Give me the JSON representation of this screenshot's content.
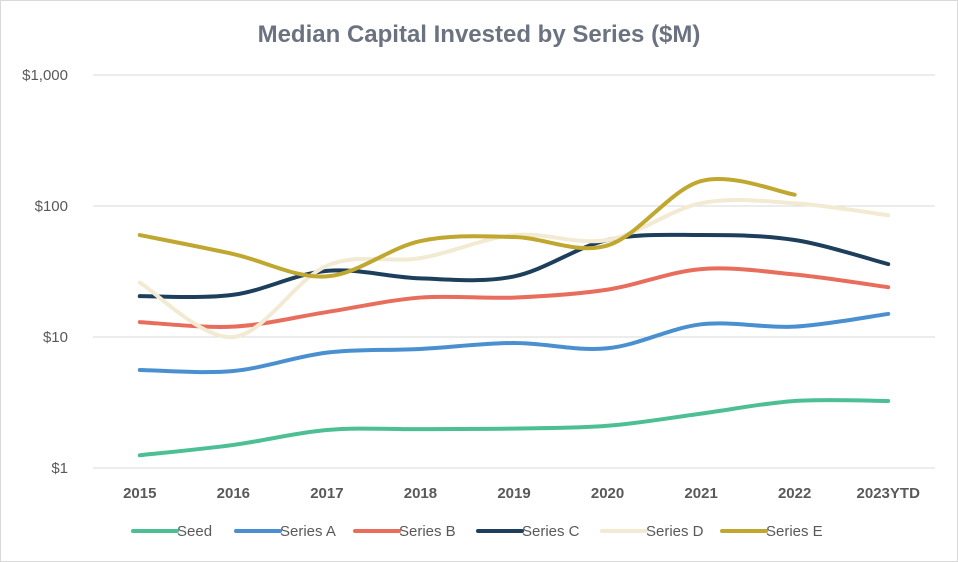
{
  "chart_data": {
    "type": "line",
    "title": "Median Capital Invested by Series ($M)",
    "xlabel": "",
    "ylabel": "",
    "y_scale": "log",
    "ylim": [
      1,
      1000
    ],
    "y_ticks": [
      1,
      10,
      100,
      1000
    ],
    "y_tick_labels": [
      "$1",
      "$10",
      "$100",
      "$1,000"
    ],
    "grid": true,
    "legend_position": "bottom",
    "categories": [
      "2015",
      "2016",
      "2017",
      "2018",
      "2019",
      "2020",
      "2021",
      "2022",
      "2023YTD"
    ],
    "series": [
      {
        "name": "Seed",
        "color": "#4dbf94",
        "values": [
          1.25,
          1.5,
          1.95,
          1.98,
          2.0,
          2.1,
          2.6,
          3.25,
          3.25
        ]
      },
      {
        "name": "Series A",
        "color": "#4a90d0",
        "values": [
          5.6,
          5.5,
          7.6,
          8.1,
          9.0,
          8.2,
          12.5,
          12.0,
          15.0
        ]
      },
      {
        "name": "Series B",
        "color": "#e86d5c",
        "values": [
          13.0,
          12.0,
          15.5,
          20.0,
          20.0,
          23.0,
          33.0,
          30.0,
          24.0
        ]
      },
      {
        "name": "Series C",
        "color": "#1d3f5c",
        "values": [
          20.5,
          21.0,
          32.0,
          28.0,
          29.0,
          55.0,
          60.0,
          55.0,
          36.0
        ]
      },
      {
        "name": "Series D",
        "color": "#f2ead2",
        "values": [
          26.0,
          10.0,
          35.0,
          40.0,
          60.0,
          55.0,
          105.0,
          105.0,
          85.0
        ]
      },
      {
        "name": "Series E",
        "color": "#c0a730",
        "values": [
          60.0,
          43.0,
          29.0,
          54.0,
          58.0,
          50.0,
          155.0,
          122.0,
          null
        ]
      }
    ]
  }
}
